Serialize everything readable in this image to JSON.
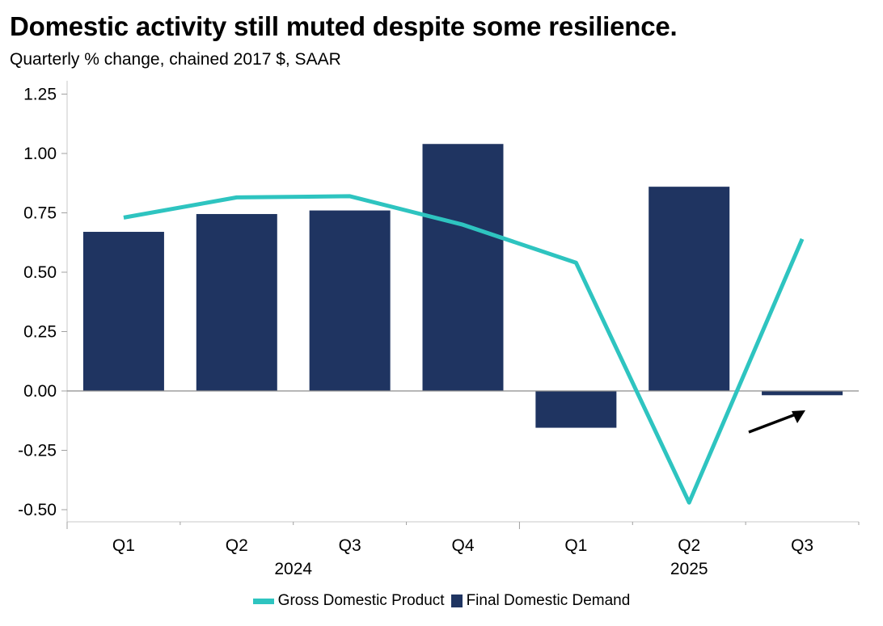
{
  "chart_data": {
    "type": "bar",
    "title": "Domestic activity still muted despite some resilience.",
    "subtitle": "Quarterly % change, chained 2017 $, SAAR",
    "xlabel": "",
    "ylabel": "",
    "ylim": [
      -0.55,
      1.3
    ],
    "yticks": [
      "1.25",
      "1.00",
      "0.75",
      "0.50",
      "0.25",
      "0.00",
      "-0.25",
      "-0.50"
    ],
    "ytick_values": [
      1.25,
      1.0,
      0.75,
      0.5,
      0.25,
      0.0,
      -0.25,
      -0.5
    ],
    "categories": [
      "Q1",
      "Q2",
      "Q3",
      "Q4",
      "Q1",
      "Q2",
      "Q3"
    ],
    "groups": [
      {
        "label": "2024",
        "count": 4
      },
      {
        "label": "2025",
        "count": 3
      }
    ],
    "series": [
      {
        "name": "Final Domestic Demand",
        "type": "bar",
        "color": "#1f3461",
        "values": [
          0.67,
          0.745,
          0.76,
          1.04,
          -0.155,
          0.86,
          -0.018
        ]
      },
      {
        "name": "Gross Domestic Product",
        "type": "line",
        "color": "#2ec4c0",
        "values": [
          0.73,
          0.815,
          0.82,
          0.7,
          0.54,
          -0.47,
          0.64
        ]
      }
    ],
    "legend": {
      "position": "bottom",
      "items": [
        {
          "label": "Gross Domestic Product",
          "color": "#2ec4c0",
          "kind": "line"
        },
        {
          "label": "Final Domestic Demand",
          "color": "#1f3461",
          "kind": "box"
        }
      ]
    },
    "annotations": [
      {
        "type": "arrow",
        "points_to": "Final Domestic Demand 2025 Q3",
        "color": "#000000"
      }
    ],
    "grid": false
  }
}
